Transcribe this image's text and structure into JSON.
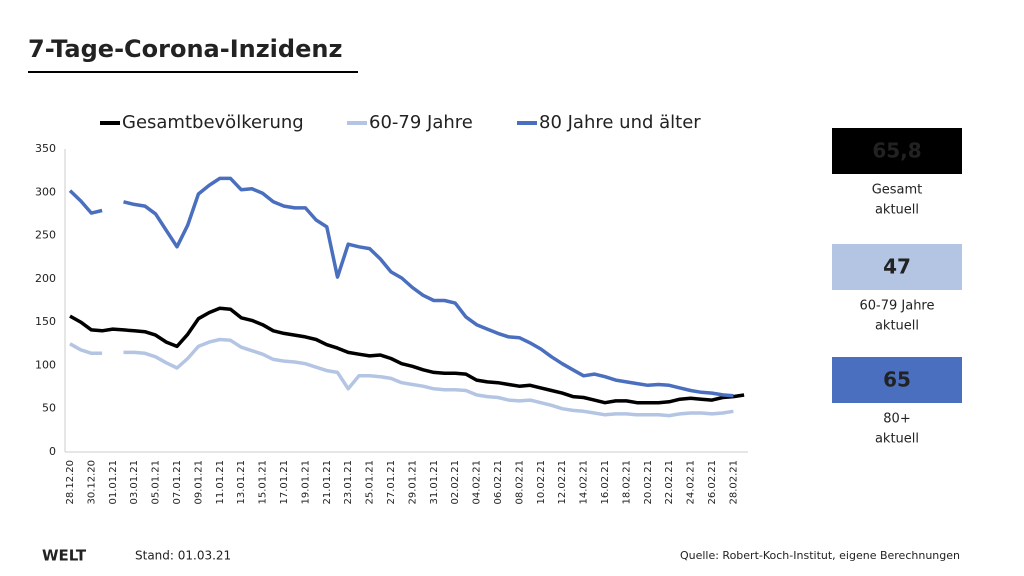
{
  "chart_data": {
    "type": "line",
    "title": "7-Tage-Corona-Inzidenz",
    "categories": [
      "28.12.20",
      null,
      "30.12.20",
      null,
      "01.01.21",
      null,
      "03.01.21",
      null,
      "05.01.21",
      null,
      "07.01.21",
      null,
      "09.01.21",
      null,
      "11.01.21",
      null,
      "13.01.21",
      null,
      "15.01.21",
      null,
      "17.01.21",
      null,
      "19.01.21",
      null,
      "21.01.21",
      null,
      "23.01.21",
      null,
      "25.01.21",
      null,
      "27.01.21",
      null,
      "29.01.21",
      null,
      "31.01.21",
      null,
      "02.02.21",
      null,
      "04.02.21",
      null,
      "06.02.21",
      null,
      "08.02.21",
      null,
      "10.02.21",
      null,
      "12.02.21",
      null,
      "14.02.21",
      null,
      "16.02.21",
      null,
      "18.02.21",
      null,
      "20.02.21",
      null,
      "22.02.21",
      null,
      "24.02.21",
      null,
      "26.02.21",
      null,
      "28.02.21",
      null
    ],
    "series": [
      {
        "name": "Gesamtbevölkerung",
        "color": "#000000",
        "values": [
          157,
          150,
          141,
          140,
          142,
          141,
          140,
          139,
          135,
          127,
          122,
          136,
          154,
          161,
          166,
          165,
          155,
          152,
          147,
          140,
          137,
          135,
          133,
          130,
          124,
          120,
          115,
          113,
          111,
          112,
          108,
          102,
          99,
          95,
          92,
          91,
          91,
          90,
          83,
          81,
          80,
          78,
          76,
          77,
          74,
          71,
          68,
          64,
          63,
          60,
          57,
          59,
          59,
          57,
          57,
          57,
          58,
          61,
          62,
          61,
          60,
          63,
          64,
          65.8
        ]
      },
      {
        "name": "60-79 Jahre",
        "color": "#b4c5e4",
        "values": [
          125,
          118,
          114,
          114,
          null,
          115,
          115,
          114,
          110,
          103,
          97,
          108,
          122,
          127,
          130,
          129,
          121,
          117,
          113,
          107,
          105,
          104,
          102,
          98,
          94,
          92,
          73,
          88,
          88,
          87,
          85,
          80,
          78,
          76,
          73,
          72,
          72,
          71,
          66,
          64,
          63,
          60,
          59,
          60,
          57,
          54,
          50,
          48,
          47,
          45,
          43,
          44,
          44,
          43,
          43,
          43,
          42,
          44,
          45,
          45,
          44,
          45,
          47,
          null
        ]
      },
      {
        "name": "80 Jahre und älter",
        "color": "#4a6fbf",
        "values": [
          302,
          290,
          276,
          279,
          null,
          289,
          286,
          284,
          275,
          256,
          237,
          262,
          298,
          308,
          316,
          316,
          303,
          304,
          299,
          289,
          284,
          282,
          282,
          268,
          260,
          202,
          240,
          237,
          235,
          223,
          208,
          201,
          190,
          181,
          175,
          175,
          172,
          156,
          147,
          142,
          137,
          133,
          132,
          126,
          119,
          110,
          102,
          95,
          88,
          90,
          87,
          83,
          81,
          79,
          77,
          78,
          77,
          74,
          71,
          69,
          68,
          66,
          65,
          null
        ]
      }
    ],
    "ylim": [
      0,
      350
    ],
    "yticks": [
      0,
      50,
      100,
      150,
      200,
      250,
      300,
      350
    ],
    "grid": false
  },
  "summary": [
    {
      "value": "65,8",
      "lines": [
        "Gesamt",
        "aktuell"
      ],
      "color": "#000000",
      "text_color": "#ffffff"
    },
    {
      "value": "47",
      "lines": [
        "60-79 Jahre",
        "aktuell"
      ],
      "color": "#b4c5e4",
      "text_color": "#ffffff"
    },
    {
      "value": "65",
      "lines": [
        "80+",
        "aktuell"
      ],
      "color": "#4a6fbf",
      "text_color": "#ffffff"
    }
  ],
  "footer": {
    "brand": "WELT",
    "stand": "Stand:  01.03.21",
    "source": "Quelle: Robert-Koch-Institut, eigene Berechnungen"
  }
}
